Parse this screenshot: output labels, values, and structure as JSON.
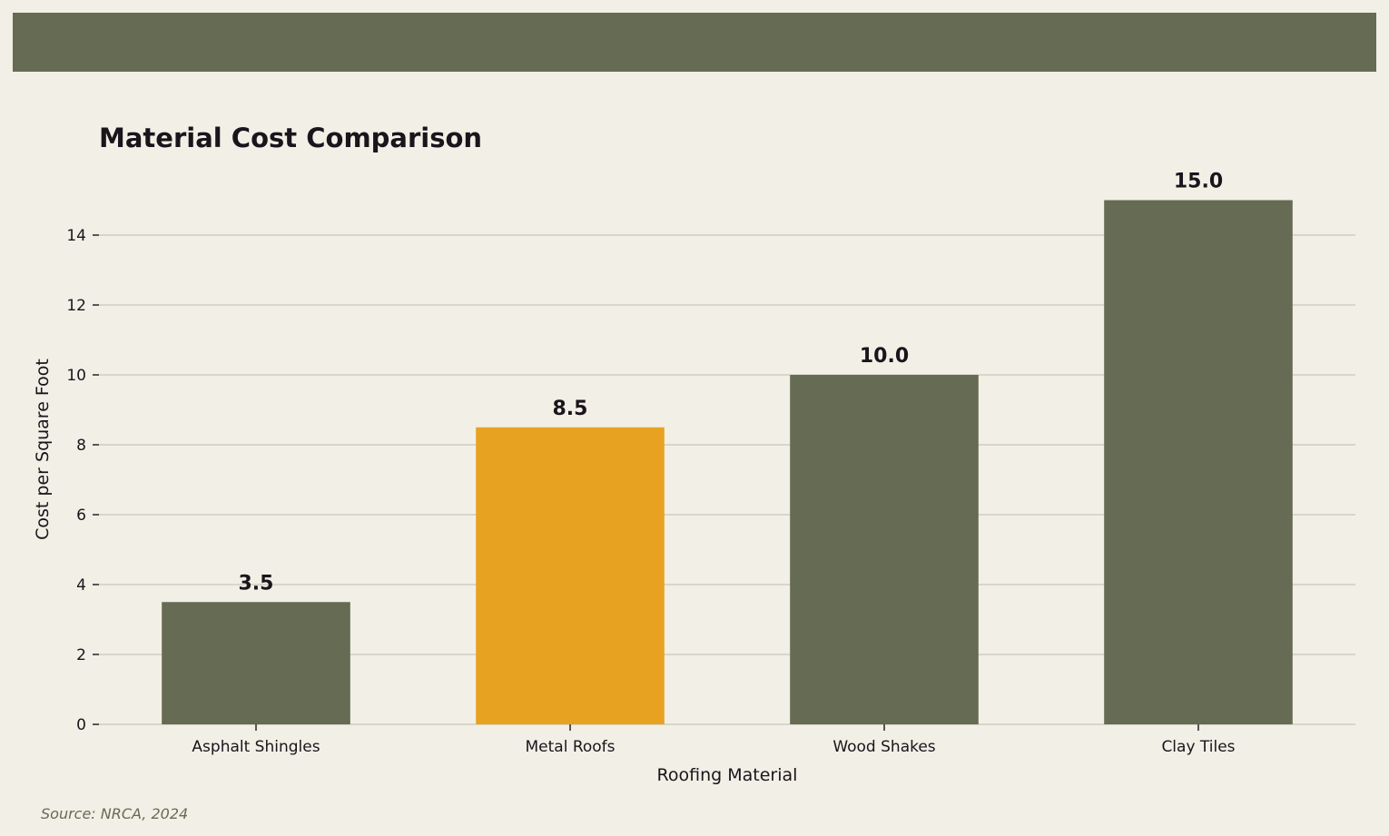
{
  "colors": {
    "background": "#F2EFE6",
    "banner": "#666B53",
    "bar_default": "#666B53",
    "bar_highlight": "#E8A222",
    "grid": "#CFCDBF",
    "text": "#1A141C",
    "source_text": "#666B53"
  },
  "source": "Source: NRCA, 2024",
  "chart_data": {
    "type": "bar",
    "title": "Material Cost Comparison",
    "xlabel": "Roofing Material",
    "ylabel": "Cost per Square Foot",
    "categories": [
      "Asphalt Shingles",
      "Metal Roofs",
      "Wood Shakes",
      "Clay Tiles"
    ],
    "values": [
      3.5,
      8.5,
      10.0,
      15.0
    ],
    "value_labels": [
      "3.5",
      "8.5",
      "10.0",
      "15.0"
    ],
    "highlight_index": 1,
    "yticks": [
      0,
      2,
      4,
      6,
      8,
      10,
      12,
      14
    ],
    "ylim": [
      0,
      15
    ],
    "grid": true,
    "legend": "none"
  }
}
